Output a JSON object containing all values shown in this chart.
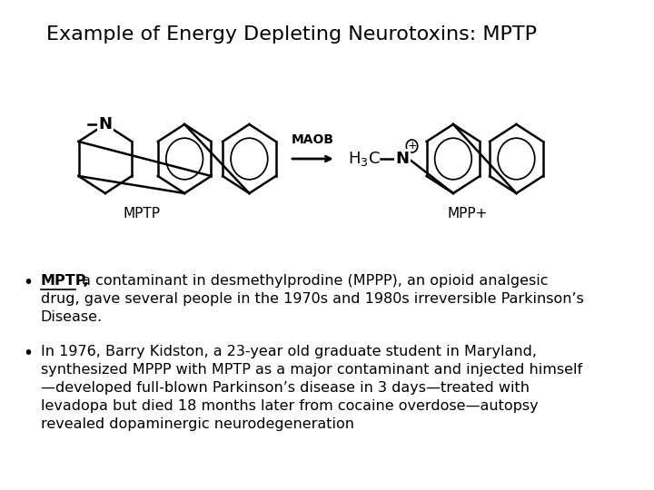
{
  "title": "Example of Energy Depleting Neurotoxins: MPTP",
  "title_fontsize": 16,
  "background_color": "#ffffff",
  "text_color": "#000000",
  "bullet1_bold": "MPTP,",
  "bullet1_rest": " a contaminant in desmethylprodine (MPPP), an opioid analgesic",
  "bullet1_line2": "drug, gave several people in the 1970s and 1980s irreversible Parkinson’s",
  "bullet1_line3": "Disease.",
  "bullet2_line1": "In 1976, Barry Kidston, a 23-year old graduate student in Maryland,",
  "bullet2_line2": "synthesized MPPP with MPTP as a major contaminant and injected himself",
  "bullet2_line3": "—developed full-blown Parkinson’s disease in 3 days—treated with",
  "bullet2_line4": "levadopa but died 18 months later from cocaine overdose—autopsy",
  "bullet2_line5": "revealed dopaminergic neurodegeneration",
  "label_mptp": "MPTP",
  "label_mpp": "MPP+",
  "label_maob": "MAOB",
  "font_family": "DejaVu Sans"
}
